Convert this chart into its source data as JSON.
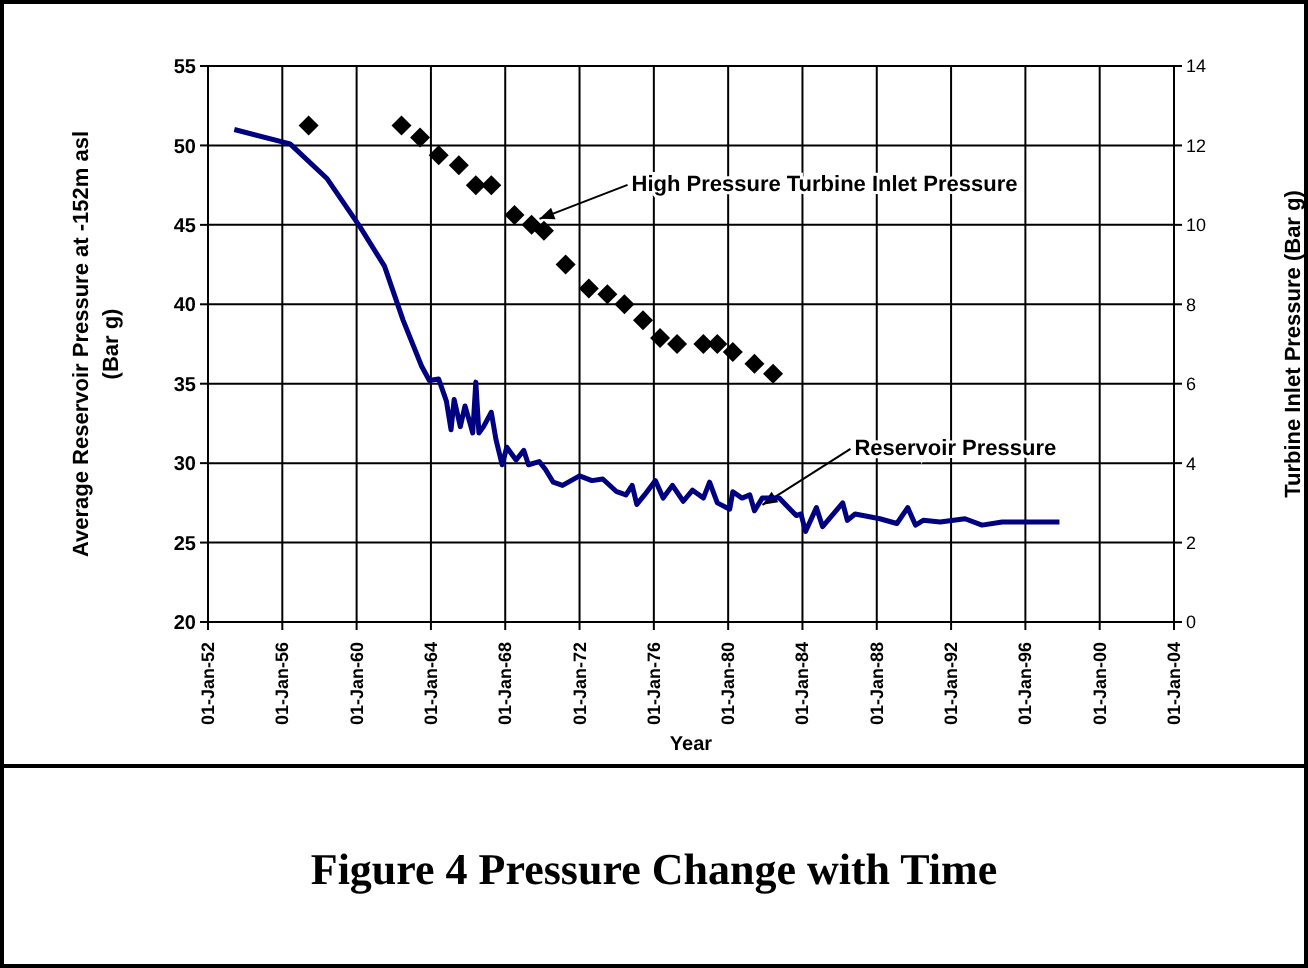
{
  "chart_data": {
    "type": "line",
    "annotations": [
      "Figure 4 Pressure Change with Time"
    ],
    "xlabel": "Year",
    "ylabel": "Average Reservoir Pressure at -152m asl\n(Bar g)",
    "y2label": "Turbine Inlet Pressure (Bar g)",
    "xlim": [
      "1952-01-01",
      "2004-01-01"
    ],
    "xticks": [
      {
        "value": "1952-01-01",
        "label": "01-Jan-52"
      },
      {
        "value": "1956-01-01",
        "label": "01-Jan-56"
      },
      {
        "value": "1960-01-01",
        "label": "01-Jan-60"
      },
      {
        "value": "1964-01-01",
        "label": "01-Jan-64"
      },
      {
        "value": "1968-01-01",
        "label": "01-Jan-68"
      },
      {
        "value": "1972-01-01",
        "label": "01-Jan-72"
      },
      {
        "value": "1976-01-01",
        "label": "01-Jan-76"
      },
      {
        "value": "1980-01-01",
        "label": "01-Jan-80"
      },
      {
        "value": "1984-01-01",
        "label": "01-Jan-84"
      },
      {
        "value": "1988-01-01",
        "label": "01-Jan-88"
      },
      {
        "value": "1992-01-01",
        "label": "01-Jan-92"
      },
      {
        "value": "1996-01-01",
        "label": "01-Jan-96"
      },
      {
        "value": "2000-01-01",
        "label": "01-Jan-00"
      },
      {
        "value": "2004-01-01",
        "label": "01-Jan-04"
      }
    ],
    "ylim": [
      20,
      55
    ],
    "yticks": [
      20,
      25,
      30,
      35,
      40,
      45,
      50,
      55
    ],
    "y2lim": [
      0,
      14
    ],
    "y2ticks": [
      0,
      2,
      4,
      6,
      8,
      10,
      12,
      14
    ],
    "grid": true,
    "series": [
      {
        "name": "Reservoir Pressure",
        "type": "line",
        "color": "#000080",
        "marker": "none",
        "line_style": "solid",
        "x": [
          "1953-06",
          "1956-06",
          "1958-06",
          "1960-03",
          "1961-07",
          "1962-07",
          "1963-07",
          "1963-12",
          "1964-06",
          "1964-11",
          "1965-02",
          "1965-04",
          "1965-08",
          "1965-11",
          "1966-02",
          "1966-04",
          "1966-06",
          "1966-08",
          "1966-11",
          "1967-04",
          "1967-07",
          "1967-11",
          "1968-02",
          "1968-08",
          "1969-01",
          "1969-04",
          "1969-11",
          "1970-03",
          "1970-08",
          "1971-02",
          "1972-01",
          "1972-09",
          "1973-04",
          "1974-01",
          "1974-07",
          "1974-11",
          "1975-02",
          "1975-07",
          "1976-02",
          "1976-07",
          "1977-01",
          "1977-08",
          "1978-02",
          "1978-09",
          "1979-01",
          "1979-06",
          "1980-02",
          "1980-04",
          "1980-10",
          "1981-03",
          "1981-06",
          "1981-11",
          "1982-10",
          "1983-09",
          "1983-12",
          "1984-03",
          "1984-10",
          "1985-02",
          "1986-03",
          "1986-06",
          "1986-11",
          "1988-03",
          "1989-02",
          "1989-09",
          "1990-02",
          "1990-07",
          "1991-06",
          "1992-10",
          "1993-09",
          "1994-10",
          "1996-02",
          "1997-11"
        ],
        "values": [
          51.0,
          50.1,
          47.9,
          44.9,
          42.4,
          39.0,
          36.1,
          35.2,
          35.3,
          33.9,
          32.1,
          34.0,
          32.3,
          33.6,
          32.6,
          31.9,
          35.1,
          31.9,
          32.3,
          33.2,
          31.5,
          29.9,
          31.0,
          30.2,
          30.8,
          29.9,
          30.1,
          29.6,
          28.8,
          28.6,
          29.2,
          28.9,
          29.0,
          28.2,
          28.0,
          28.6,
          27.4,
          28.0,
          28.9,
          27.8,
          28.6,
          27.6,
          28.3,
          27.8,
          28.8,
          27.5,
          27.1,
          28.2,
          27.8,
          28.0,
          27.0,
          27.8,
          27.8,
          26.7,
          26.8,
          25.7,
          27.2,
          26.0,
          27.5,
          26.4,
          26.8,
          26.5,
          26.2,
          27.2,
          26.1,
          26.4,
          26.3,
          26.5,
          26.1,
          26.3,
          26.3,
          26.3
        ]
      },
      {
        "name": "High Pressure Turbine Inlet Pressure",
        "type": "scatter",
        "axis": "y2",
        "color": "#000000",
        "marker": "diamond",
        "x": [
          "1957-06",
          "1962-06",
          "1963-06",
          "1964-06",
          "1965-07",
          "1966-06",
          "1967-04",
          "1968-07",
          "1969-06",
          "1970-02",
          "1971-04",
          "1972-07",
          "1973-07",
          "1974-06",
          "1975-06",
          "1976-05",
          "1977-04",
          "1978-09",
          "1979-06",
          "1980-04",
          "1981-06",
          "1982-06"
        ],
        "values": [
          12.5,
          12.5,
          12.2,
          11.75,
          11.5,
          11.0,
          11.0,
          10.25,
          10.0,
          9.85,
          9.0,
          8.4,
          8.25,
          8.0,
          7.6,
          7.15,
          7.0,
          7.0,
          7.0,
          6.8,
          6.5,
          6.25
        ]
      }
    ]
  }
}
